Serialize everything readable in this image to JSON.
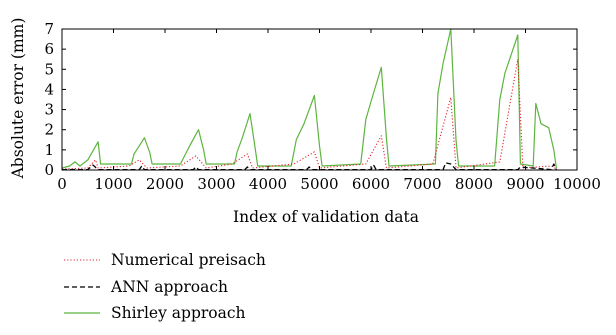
{
  "chart_data": {
    "type": "line",
    "title": "",
    "xlabel": "Index of validation data",
    "ylabel": "Absolute error (mm)",
    "xlim": [
      0,
      10000
    ],
    "ylim": [
      0,
      7
    ],
    "xticks": [
      0,
      1000,
      2000,
      3000,
      4000,
      5000,
      6000,
      7000,
      8000,
      9000,
      10000
    ],
    "yticks": [
      0,
      1,
      2,
      3,
      4,
      5,
      6,
      7
    ],
    "grid": false,
    "legend_position": "below-left",
    "series": [
      {
        "name": "Numerical preisach",
        "style": "dotted",
        "color": "#e8202a",
        "x": [
          0,
          500,
          650,
          700,
          1300,
          1500,
          1650,
          2300,
          2600,
          2800,
          3300,
          3600,
          3700,
          4500,
          4900,
          5000,
          5900,
          6200,
          6300,
          7200,
          7550,
          7650,
          8500,
          8850,
          8950,
          9500,
          9600
        ],
        "y": [
          0.05,
          0.1,
          0.5,
          0.1,
          0.2,
          0.5,
          0.1,
          0.2,
          0.7,
          0.1,
          0.3,
          0.8,
          0.1,
          0.3,
          0.9,
          0.1,
          0.3,
          1.7,
          0.1,
          0.3,
          3.6,
          0.1,
          0.4,
          5.5,
          0.1,
          0.2,
          0.05
        ]
      },
      {
        "name": "ANN approach",
        "style": "dashed",
        "color": "#000000",
        "x": [
          0,
          500,
          600,
          700,
          1500,
          1550,
          1600,
          2550,
          2600,
          2650,
          3550,
          3600,
          3650,
          4750,
          4800,
          4850,
          6000,
          6050,
          6100,
          7400,
          7450,
          7550,
          7650,
          8850,
          8900,
          9500,
          9550,
          9600
        ],
        "y": [
          0.02,
          0.02,
          0.25,
          0.02,
          0.02,
          0.2,
          0.02,
          0.02,
          0.15,
          0.02,
          0.02,
          0.15,
          0.02,
          0.02,
          0.15,
          0.02,
          0.02,
          0.25,
          0.02,
          0.02,
          0.35,
          0.3,
          0.02,
          0.02,
          0.15,
          0.02,
          0.3,
          0.02
        ]
      },
      {
        "name": "Shirley approach",
        "style": "solid",
        "color": "#5db53f",
        "x": [
          0,
          150,
          250,
          350,
          500,
          700,
          750,
          1350,
          1400,
          1500,
          1600,
          1700,
          1750,
          2300,
          2400,
          2500,
          2650,
          2750,
          2800,
          3350,
          3400,
          3500,
          3650,
          3750,
          3800,
          4450,
          4550,
          4700,
          4900,
          5000,
          5050,
          5800,
          5900,
          6000,
          6200,
          6300,
          6350,
          7250,
          7300,
          7400,
          7550,
          7650,
          7700,
          8400,
          8500,
          8600,
          8850,
          8900,
          9150,
          9200,
          9300,
          9450,
          9550,
          9600
        ],
        "y": [
          0.1,
          0.2,
          0.4,
          0.2,
          0.5,
          1.4,
          0.3,
          0.3,
          0.8,
          1.2,
          1.6,
          0.9,
          0.3,
          0.3,
          0.8,
          1.3,
          2.0,
          1.0,
          0.3,
          0.3,
          0.9,
          1.6,
          2.8,
          1.1,
          0.2,
          0.2,
          1.5,
          2.3,
          3.7,
          1.2,
          0.2,
          0.3,
          2.5,
          3.4,
          5.1,
          1.6,
          0.2,
          0.3,
          3.8,
          5.3,
          7.0,
          1.5,
          0.2,
          0.2,
          3.5,
          4.8,
          6.7,
          0.3,
          0.2,
          3.3,
          2.3,
          2.1,
          1.0,
          0.1
        ]
      }
    ]
  }
}
